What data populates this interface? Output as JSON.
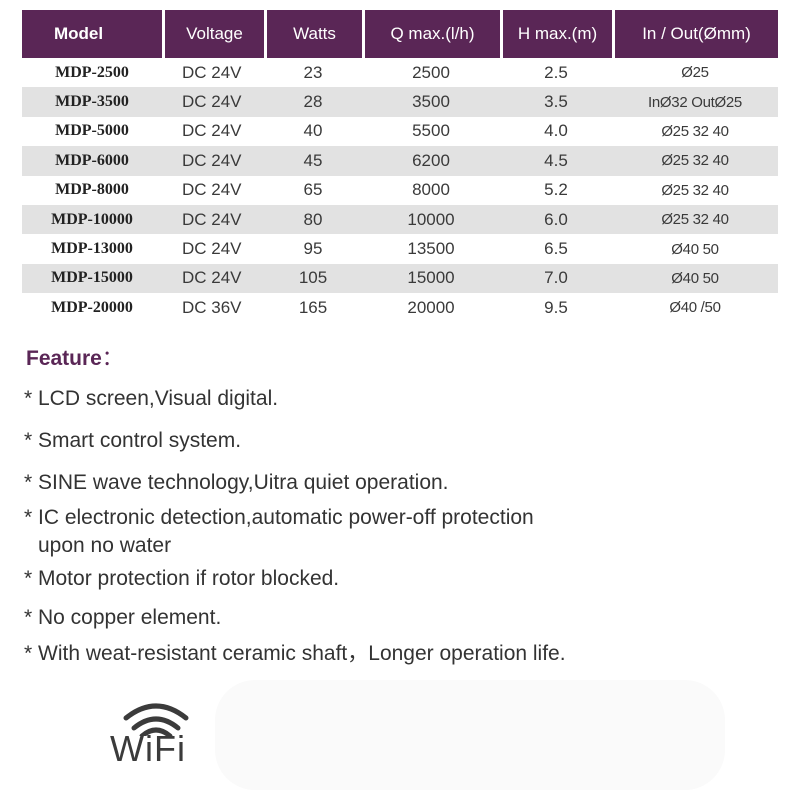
{
  "table": {
    "headers": [
      "Model",
      "Voltage",
      "Watts",
      "Q  max.(l/h)",
      "H max.(m)",
      "In / Out(Ømm)"
    ],
    "rows": [
      [
        "MDP-2500",
        "DC 24V",
        "23",
        "2500",
        "2.5",
        "Ø25"
      ],
      [
        "MDP-3500",
        "DC 24V",
        "28",
        "3500",
        "3.5",
        "InØ32 OutØ25"
      ],
      [
        "MDP-5000",
        "DC 24V",
        "40",
        "5500",
        "4.0",
        "Ø25 32 40"
      ],
      [
        "MDP-6000",
        "DC 24V",
        "45",
        "6200",
        "4.5",
        "Ø25 32 40"
      ],
      [
        "MDP-8000",
        "DC 24V",
        "65",
        "8000",
        "5.2",
        "Ø25 32 40"
      ],
      [
        "MDP-10000",
        "DC 24V",
        "80",
        "10000",
        "6.0",
        "Ø25 32 40"
      ],
      [
        "MDP-13000",
        "DC 24V",
        "95",
        "13500",
        "6.5",
        "Ø40 50"
      ],
      [
        "MDP-15000",
        "DC 24V",
        "105",
        "15000",
        "7.0",
        "Ø40 50"
      ],
      [
        "MDP-20000",
        "DC 36V",
        "165",
        "20000",
        "9.5",
        "Ø40 /50"
      ]
    ]
  },
  "features": {
    "title": "Feature",
    "colon": "：",
    "items": [
      {
        "text": "* LCD screen,Visual digital.",
        "cont": ""
      },
      {
        "text": "* Smart control system.",
        "cont": ""
      },
      {
        "text": "* SINE wave technology,Uitra quiet operation.",
        "cont": ""
      },
      {
        "text": "* IC electronic detection,automatic power-off protection",
        "cont": "upon no water"
      },
      {
        "text": "* Motor protection if rotor blocked.",
        "cont": ""
      },
      {
        "text": "* No copper element.",
        "cont": ""
      },
      {
        "text": "* With weat-resistant ceramic shaft，Longer operation life.",
        "cont": ""
      }
    ]
  },
  "wifi": {
    "label": "WiFi",
    "icon": "wifi-icon"
  },
  "colors": {
    "header_bg": "#5a2656",
    "row_shade": "#e2e2e2",
    "feature_title": "#5a2656"
  }
}
